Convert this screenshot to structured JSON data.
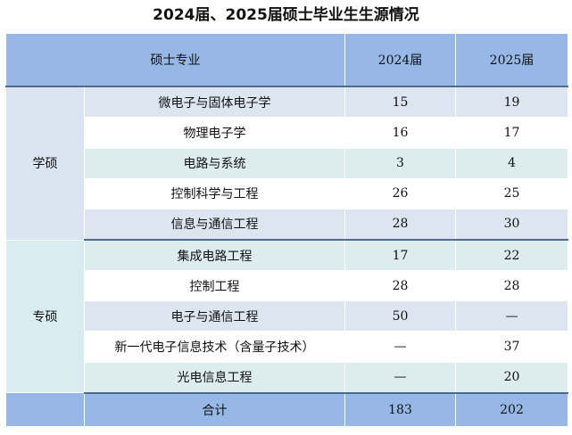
{
  "title": "2024届、2025届硕士毕业生生源情况",
  "header": {
    "major": "硕士专业",
    "y2024": "2024届",
    "y2025": "2025届"
  },
  "groups": [
    {
      "name": "学硕",
      "rows": [
        {
          "major": "微电子与固体电子学",
          "y2024": "15",
          "y2025": "19"
        },
        {
          "major": "物理电子学",
          "y2024": "16",
          "y2025": "17"
        },
        {
          "major": "电路与系统",
          "y2024": "3",
          "y2025": "4"
        },
        {
          "major": "控制科学与工程",
          "y2024": "26",
          "y2025": "25"
        },
        {
          "major": "信息与通信工程",
          "y2024": "28",
          "y2025": "30"
        }
      ]
    },
    {
      "name": "专硕",
      "rows": [
        {
          "major": "集成电路工程",
          "y2024": "17",
          "y2025": "22"
        },
        {
          "major": "控制工程",
          "y2024": "28",
          "y2025": "28"
        },
        {
          "major": "电子与通信工程",
          "y2024": "50",
          "y2025": "—"
        },
        {
          "major": "新一代电子信息技术（含量子技术）",
          "y2024": "—",
          "y2025": "37"
        },
        {
          "major": "光电信息工程",
          "y2024": "—",
          "y2025": "20"
        }
      ]
    }
  ],
  "total": {
    "label": "合计",
    "y2024": "183",
    "y2025": "202"
  },
  "colors": {
    "header_fill": "#97b8e6",
    "row_blue": "#dde5f0",
    "row_teal": "#dcecef",
    "row_white": "#ffffff",
    "rule": "#4f6b8c"
  }
}
